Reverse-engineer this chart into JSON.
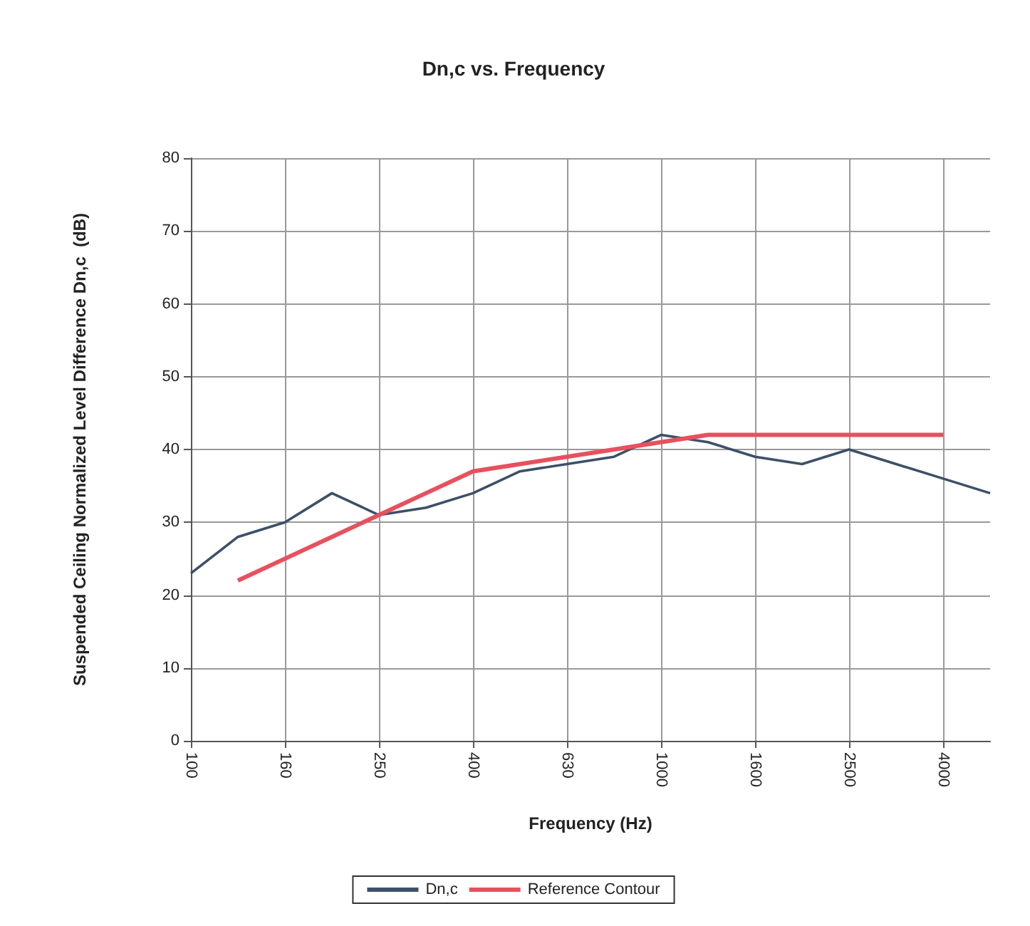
{
  "chart_data": {
    "type": "line",
    "title": "Dn,c vs. Frequency",
    "xlabel": "Frequency (Hz)",
    "ylabel": "Suspended Ceiling Normalized Level Difference Dn,c  (dB)",
    "categories": [
      "100",
      null,
      "160",
      null,
      "250",
      null,
      "400",
      null,
      "630",
      null,
      "1000",
      null,
      "1600",
      null,
      "2500",
      null,
      "4000",
      null
    ],
    "series": [
      {
        "name": "Dn,c",
        "color": "#3d5068",
        "values": [
          23,
          28,
          30,
          34,
          31,
          32,
          34,
          37,
          38,
          39,
          42,
          41,
          39,
          38,
          40,
          38,
          36,
          34
        ]
      },
      {
        "name": "Reference Contour",
        "color": "#e8505e",
        "values": [
          null,
          22,
          25,
          28,
          31,
          34,
          37,
          38,
          39,
          40,
          41,
          42,
          42,
          42,
          42,
          42,
          42,
          null
        ]
      }
    ],
    "ylim": [
      0,
      80
    ],
    "yticks": [
      0,
      10,
      20,
      30,
      40,
      50,
      60,
      70,
      80
    ],
    "grid": true,
    "legend": "bottom"
  }
}
